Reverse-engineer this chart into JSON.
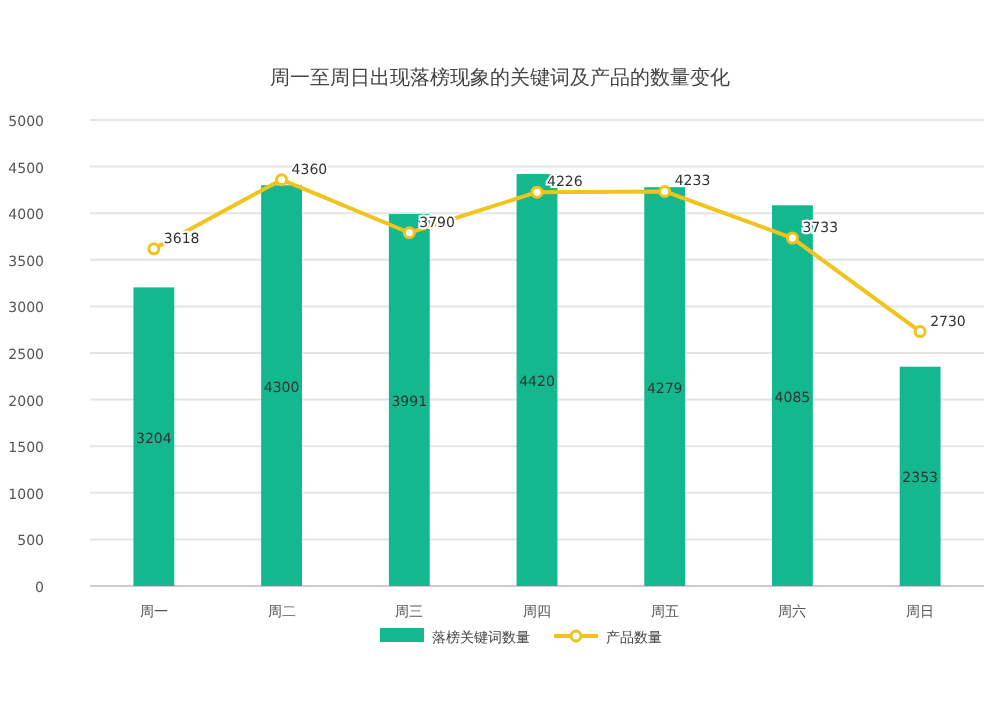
{
  "chart_data": {
    "type": "bar",
    "title": "周一至周日出现落榜现象的关键词及产品的数量变化",
    "categories": [
      "周一",
      "周二",
      "周三",
      "周四",
      "周五",
      "周六",
      "周日"
    ],
    "series": [
      {
        "name": "落榜关键词数量",
        "color": "#14b88f",
        "values": [
          3204,
          4300,
          3991,
          4420,
          4279,
          4085,
          2353
        ]
      },
      {
        "name": "产品数量",
        "type": "line",
        "color": "#f2c31b",
        "marker": "circle",
        "values": [
          3618,
          4360,
          3790,
          4226,
          4233,
          3733,
          2730
        ]
      }
    ],
    "ylim": [
      0,
      5000
    ],
    "yticks": [
      0,
      500,
      1000,
      1500,
      2000,
      2500,
      3000,
      3500,
      4000,
      4500,
      5000
    ],
    "grid": "y",
    "legend": "bottom",
    "data_labels": true
  }
}
